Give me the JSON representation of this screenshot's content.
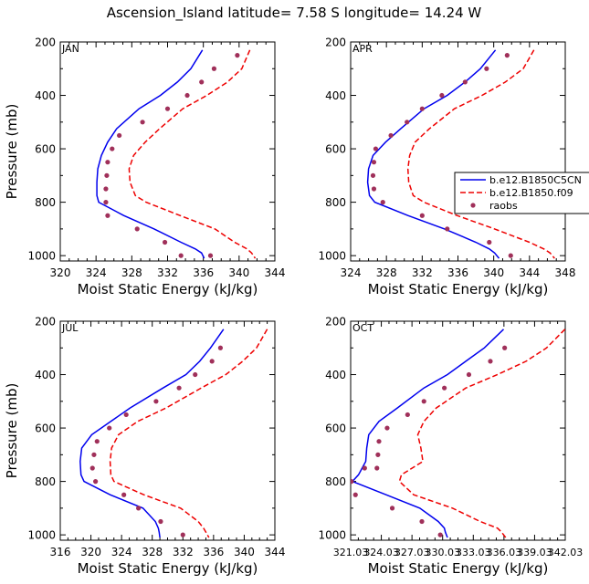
{
  "colors": {
    "model1": "#0000ee",
    "model2": "#ee0000",
    "obs": "#a0305a",
    "axis": "#000000"
  },
  "chart_data": {
    "title": "Ascension_Island   latitude= 7.58 S longitude= 14.24 W",
    "legend": {
      "placement": "right-middle",
      "entries": [
        "b.e12.B1850C5CN",
        "b.e12.B1850.f09",
        "raobs"
      ]
    },
    "panels": [
      {
        "type": "line",
        "label": "JAN",
        "xlabel": "Moist Static Energy (kJ/kg)",
        "ylabel": "Pressure (mb)",
        "xlim": [
          320,
          344
        ],
        "ylim": [
          1020,
          200
        ],
        "xticks": [
          "320",
          "324",
          "328",
          "332",
          "336",
          "340",
          "344"
        ],
        "yticks": [
          "200",
          "400",
          "600",
          "800",
          "1000"
        ],
        "series": [
          {
            "name": "b.e12.B1850C5CN",
            "style": "solid",
            "x": [
              335.9,
              334.6,
              333.1,
              331.2,
              328.8,
              326.3,
              325.3,
              324.6,
              324.2,
              324.1,
              324.1,
              324.3,
              327.1,
              330.5,
              333.5,
              335.1,
              335.8,
              336.1
            ],
            "y": [
              230,
              300,
              350,
              400,
              450,
              525,
              575,
              625,
              675,
              725,
              775,
              800,
              850,
              900,
              950,
              975,
              990,
              1010
            ]
          },
          {
            "name": "b.e12.B1850.f09",
            "style": "dashed",
            "x": [
              341.2,
              340.3,
              338.7,
              336.4,
              333.7,
              331.1,
              329.5,
              328.2,
              327.7,
              327.8,
              328.4,
              329.6,
              333.4,
              337.3,
              339.5,
              340.9,
              341.4,
              341.8
            ],
            "y": [
              230,
              300,
              350,
              400,
              450,
              525,
              575,
              625,
              675,
              725,
              775,
              800,
              850,
              900,
              950,
              975,
              990,
              1010
            ]
          },
          {
            "name": "raobs",
            "style": "markers",
            "x": [
              339.8,
              337.2,
              335.8,
              334.2,
              332.0,
              329.2,
              326.6,
              325.8,
              325.3,
              325.2,
              325.1,
              325.1,
              325.3,
              328.6,
              331.7,
              333.5,
              336.8
            ],
            "y": [
              250,
              300,
              350,
              400,
              450,
              500,
              550,
              600,
              650,
              700,
              750,
              800,
              850,
              900,
              950,
              1000,
              1000
            ]
          }
        ]
      },
      {
        "type": "line",
        "label": "APR",
        "xlabel": "Moist Static Energy (kJ/kg)",
        "ylabel": "Pressure (mb)",
        "xlim": [
          324,
          348
        ],
        "ylim": [
          1020,
          200
        ],
        "xticks": [
          "324",
          "328",
          "332",
          "336",
          "340",
          "344",
          "348"
        ],
        "yticks": [
          "200",
          "400",
          "600",
          "800",
          "1000"
        ],
        "series": [
          {
            "name": "b.e12.B1850C5CN",
            "style": "solid",
            "x": [
              340.2,
              338.5,
              336.8,
              334.8,
              332.2,
              329.6,
              327.9,
              326.5,
              326.0,
              325.9,
              326.1,
              326.7,
              330.4,
              334.5,
              338.0,
              339.5,
              340.1,
              340.6
            ],
            "y": [
              230,
              300,
              350,
              400,
              450,
              525,
              575,
              625,
              675,
              725,
              775,
              800,
              850,
              900,
              950,
              975,
              990,
              1010
            ]
          },
          {
            "name": "b.e12.B1850.f09",
            "style": "dashed",
            "x": [
              344.5,
              343.3,
              341.3,
              338.7,
              335.6,
              332.8,
              331.2,
              330.6,
              330.4,
              330.5,
              331.0,
              332.2,
              335.9,
              340.1,
              344.0,
              345.6,
              346.3,
              346.8
            ],
            "y": [
              230,
              300,
              350,
              400,
              450,
              525,
              575,
              625,
              675,
              725,
              775,
              800,
              850,
              900,
              950,
              975,
              990,
              1010
            ]
          },
          {
            "name": "raobs",
            "style": "markers",
            "x": [
              341.5,
              339.2,
              336.8,
              334.2,
              332.0,
              330.3,
              328.5,
              326.8,
              326.6,
              326.5,
              326.6,
              327.6,
              332.0,
              334.8,
              339.5,
              341.9
            ],
            "y": [
              250,
              300,
              350,
              400,
              450,
              500,
              550,
              600,
              650,
              700,
              750,
              800,
              850,
              900,
              950,
              1000
            ]
          }
        ]
      },
      {
        "type": "line",
        "label": "JUL",
        "xlabel": "Moist Static Energy (kJ/kg)",
        "ylabel": "Pressure (mb)",
        "xlim": [
          316,
          344
        ],
        "ylim": [
          1020,
          200
        ],
        "xticks": [
          "316",
          "320",
          "324",
          "328",
          "332",
          "336",
          "340",
          "344"
        ],
        "yticks": [
          "200",
          "400",
          "600",
          "800",
          "1000"
        ],
        "series": [
          {
            "name": "b.e12.B1850C5CN",
            "style": "solid",
            "x": [
              337.3,
              335.6,
              334.2,
              332.4,
              329.4,
              325.1,
              322.6,
              320.1,
              318.8,
              318.6,
              318.7,
              319.1,
              322.5,
              326.8,
              328.4,
              328.8,
              328.9,
              329.0
            ],
            "y": [
              230,
              300,
              350,
              400,
              450,
              525,
              575,
              625,
              675,
              725,
              775,
              800,
              850,
              900,
              950,
              975,
              990,
              1010
            ]
          },
          {
            "name": "b.e12.B1850.f09",
            "style": "dashed",
            "x": [
              343.0,
              341.6,
              339.8,
              337.6,
              334.4,
              329.8,
              326.1,
              323.6,
              322.7,
              322.5,
              322.6,
              323.0,
              326.9,
              331.7,
              334.0,
              334.7,
              335.0,
              335.4
            ],
            "y": [
              230,
              300,
              350,
              400,
              450,
              525,
              575,
              625,
              675,
              725,
              775,
              800,
              850,
              900,
              950,
              975,
              990,
              1010
            ]
          },
          {
            "name": "raobs",
            "style": "markers",
            "x": [
              336.9,
              335.8,
              333.6,
              331.5,
              328.5,
              324.6,
              322.4,
              320.8,
              320.4,
              320.2,
              320.6,
              324.3,
              326.2,
              329.1,
              332.0
            ],
            "y": [
              300,
              350,
              400,
              450,
              500,
              550,
              600,
              650,
              700,
              750,
              800,
              850,
              900,
              950,
              1000
            ]
          }
        ]
      },
      {
        "type": "line",
        "label": "OCT",
        "xlabel": "Moist Static Energy (kJ/kg)",
        "ylabel": "Pressure (mb)",
        "xlim": [
          321.03,
          342.03
        ],
        "ylim": [
          1020,
          200
        ],
        "xticks": [
          "321.03",
          "324.03",
          "327.03",
          "330.03",
          "333.03",
          "336.03",
          "339.03",
          "342.03"
        ],
        "yticks": [
          "200",
          "400",
          "600",
          "800",
          "1000"
        ],
        "series": [
          {
            "name": "b.e12.B1850C5CN",
            "style": "solid",
            "x": [
              336.0,
              334.1,
              332.3,
              330.5,
              328.2,
              325.6,
              323.8,
              322.8,
              322.6,
              322.5,
              321.8,
              321.2,
              324.5,
              327.8,
              329.6,
              330.2,
              330.3,
              330.5
            ],
            "y": [
              230,
              300,
              350,
              400,
              450,
              525,
              575,
              625,
              675,
              725,
              775,
              800,
              850,
              900,
              950,
              975,
              990,
              1010
            ]
          },
          {
            "name": "b.e12.B1850.f09",
            "style": "dashed",
            "x": [
              342.0,
              340.2,
              338.2,
              335.4,
              332.3,
              329.4,
              328.2,
              327.6,
              327.9,
              328.1,
              326.0,
              325.8,
              327.2,
              331.0,
              333.7,
              335.4,
              335.8,
              336.2
            ],
            "y": [
              230,
              300,
              350,
              400,
              450,
              525,
              575,
              625,
              675,
              725,
              775,
              800,
              850,
              900,
              950,
              975,
              990,
              1010
            ]
          },
          {
            "name": "raobs",
            "style": "markers",
            "x": [
              336.1,
              334.7,
              332.6,
              330.2,
              328.2,
              326.6,
              324.6,
              323.8,
              323.7,
              323.6,
              322.4,
              321.1,
              321.5,
              325.1,
              328.0,
              329.8
            ],
            "y": [
              300,
              350,
              400,
              450,
              500,
              550,
              600,
              650,
              700,
              750,
              750,
              800,
              850,
              900,
              950,
              1000
            ]
          }
        ]
      }
    ]
  }
}
